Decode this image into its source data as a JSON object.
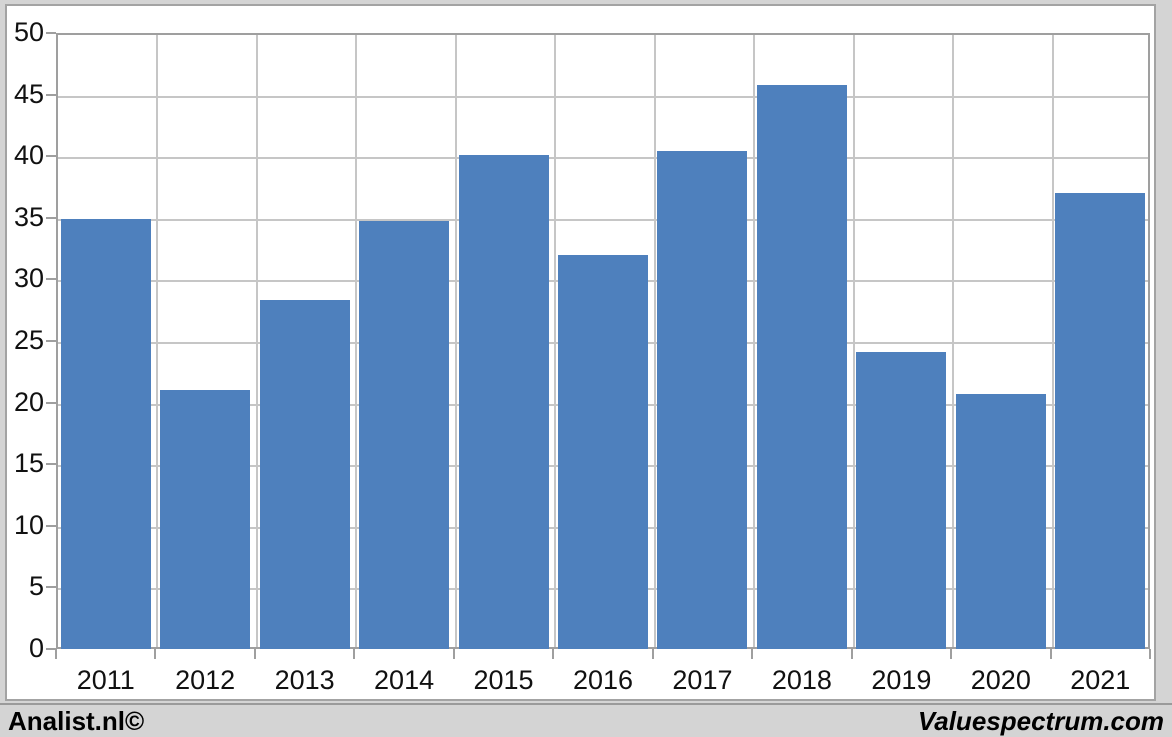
{
  "chart_data": {
    "type": "bar",
    "categories": [
      "2011",
      "2012",
      "2013",
      "2014",
      "2015",
      "2016",
      "2017",
      "2018",
      "2019",
      "2020",
      "2021"
    ],
    "values": [
      34.9,
      21.0,
      28.3,
      34.7,
      40.1,
      32.0,
      40.4,
      45.8,
      24.1,
      20.7,
      37.0
    ],
    "title": "",
    "xlabel": "",
    "ylabel": "",
    "ylim": [
      0,
      50
    ],
    "ytick_step": 5,
    "yticks": [
      0,
      5,
      10,
      15,
      20,
      25,
      30,
      35,
      40,
      45,
      50
    ],
    "grid": true,
    "legend": null,
    "bar_color": "#4e80bd",
    "gridline_color": "#c6c6c6",
    "axis_color": "#9f9f9f"
  },
  "branding": {
    "left": "Analist.nl©",
    "right": "Valuespectrum.com"
  }
}
